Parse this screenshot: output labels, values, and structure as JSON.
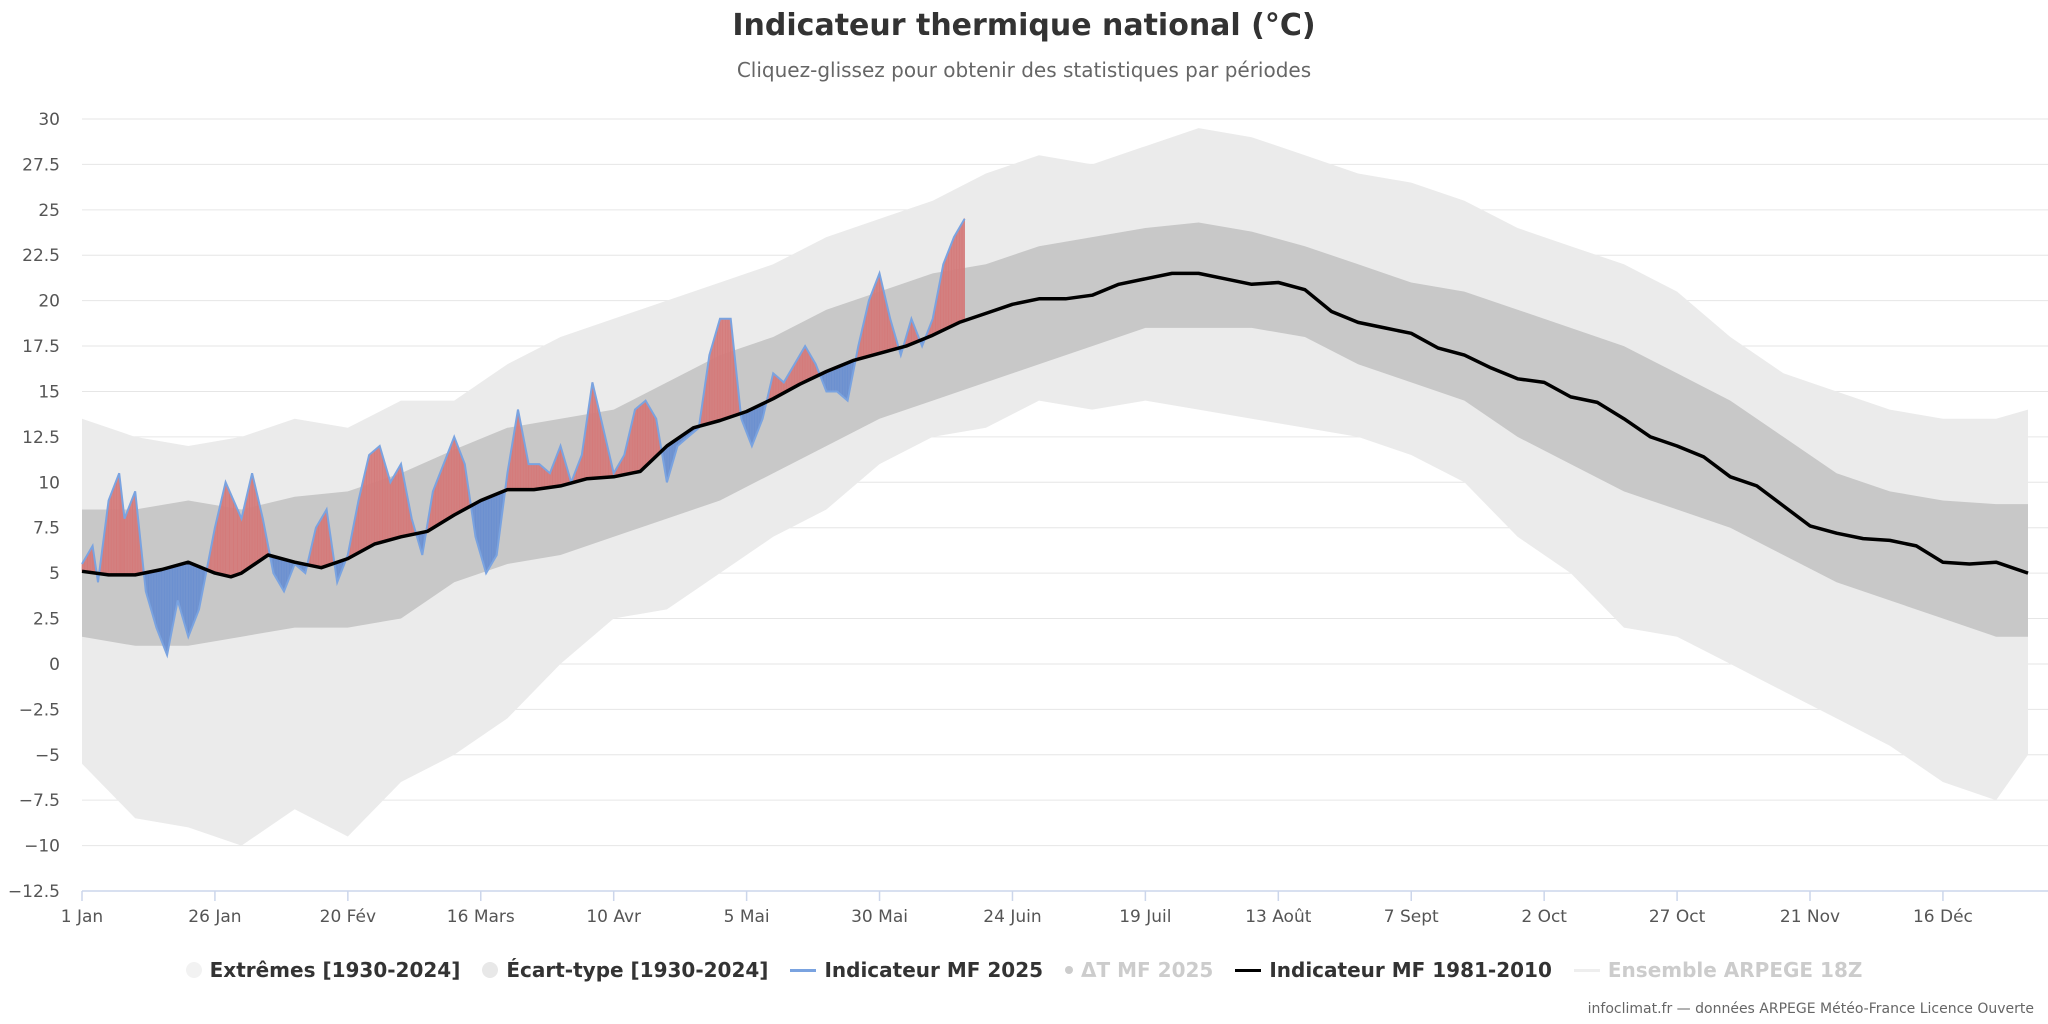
{
  "title": "Indicateur thermique national (°C)",
  "subtitle": "Cliquez-glissez pour obtenir des statistiques par périodes",
  "credit": "infoclimat.fr — données ARPEGE Météo-France Licence Ouverte",
  "colors": {
    "extremes": "#ebebeb",
    "ecart": "#c8c8c8",
    "warm": "#d47a7a",
    "cold": "#6a8fd0",
    "mf2025": "#7aa3e0",
    "normal": "#000000",
    "grid": "#e6e6e6"
  },
  "legend": [
    {
      "label": "Extrêmes [1930-2024]",
      "symbol": "dot",
      "color": "#f2f2f2",
      "hidden": false
    },
    {
      "label": "Écart-type [1930-2024]",
      "symbol": "dot",
      "color": "#e8e8e8",
      "hidden": false
    },
    {
      "label": "Indicateur MF 2025",
      "symbol": "line",
      "color": "#7aa3e0",
      "hidden": false
    },
    {
      "label": "ΔT MF 2025",
      "symbol": "smalldot",
      "color": "#cccccc",
      "hidden": true
    },
    {
      "label": "Indicateur MF 1981-2010",
      "symbol": "line",
      "color": "#000000",
      "hidden": false
    },
    {
      "label": "Ensemble ARPEGE 18Z",
      "symbol": "line",
      "color": "#eeeeee",
      "hidden": true
    }
  ],
  "chart_data": {
    "type": "area",
    "ylim": [
      -12.5,
      30
    ],
    "xlim_days": [
      0,
      366
    ],
    "grid": true,
    "legend_position": "bottom",
    "y_ticks": [
      "30",
      "27.5",
      "25",
      "22.5",
      "20",
      "17.5",
      "15",
      "12.5",
      "10",
      "7.5",
      "5",
      "2.5",
      "0",
      "−2.5",
      "−5",
      "−7.5",
      "−10",
      "−12.5"
    ],
    "x_ticks": [
      {
        "label": "1 Jan",
        "day": 0
      },
      {
        "label": "26 Jan",
        "day": 25
      },
      {
        "label": "20 Fév",
        "day": 50
      },
      {
        "label": "16 Mars",
        "day": 75
      },
      {
        "label": "10 Avr",
        "day": 100
      },
      {
        "label": "5 Mai",
        "day": 125
      },
      {
        "label": "30 Mai",
        "day": 150
      },
      {
        "label": "24 Juin",
        "day": 175
      },
      {
        "label": "19 Juil",
        "day": 200
      },
      {
        "label": "13 Août",
        "day": 225
      },
      {
        "label": "7 Sept",
        "day": 250
      },
      {
        "label": "2 Oct",
        "day": 275
      },
      {
        "label": "27 Oct",
        "day": 300
      },
      {
        "label": "21 Nov",
        "day": 325
      },
      {
        "label": "16 Déc",
        "day": 350
      }
    ],
    "series": [
      {
        "name": "Indicateur MF 1981-2010",
        "x": [
          0,
          5,
          10,
          15,
          20,
          25,
          28,
          30,
          35,
          40,
          45,
          50,
          55,
          60,
          65,
          70,
          75,
          80,
          85,
          90,
          95,
          100,
          105,
          110,
          115,
          120,
          125,
          130,
          135,
          140,
          145,
          150,
          155,
          160,
          165,
          170,
          175,
          180,
          185,
          190,
          195,
          200,
          205,
          210,
          215,
          220,
          225,
          230,
          235,
          240,
          245,
          250,
          255,
          260,
          265,
          270,
          275,
          280,
          285,
          290,
          295,
          300,
          305,
          310,
          315,
          320,
          325,
          330,
          335,
          340,
          345,
          350,
          355,
          360,
          366
        ],
        "values": [
          5.1,
          4.9,
          4.9,
          5.2,
          5.6,
          5.0,
          4.8,
          5.0,
          6.0,
          5.6,
          5.3,
          5.8,
          6.6,
          7.0,
          7.3,
          8.2,
          9.0,
          9.6,
          9.6,
          9.8,
          10.2,
          10.3,
          10.6,
          12.0,
          13.0,
          13.4,
          13.9,
          14.6,
          15.4,
          16.1,
          16.7,
          17.1,
          17.5,
          18.1,
          18.8,
          19.3,
          19.8,
          20.1,
          20.1,
          20.3,
          20.9,
          21.2,
          21.5,
          21.5,
          21.2,
          20.9,
          21.0,
          20.6,
          19.4,
          18.8,
          18.5,
          18.2,
          17.4,
          17.0,
          16.3,
          15.7,
          15.5,
          14.7,
          14.4,
          13.5,
          12.5,
          12.0,
          11.4,
          10.3,
          9.8,
          8.7,
          7.6,
          7.2,
          6.9,
          6.8,
          6.5,
          5.6,
          5.5,
          5.6,
          5.0
        ]
      },
      {
        "name": "Indicateur MF 2025",
        "x": [
          0,
          2,
          3,
          5,
          7,
          8,
          10,
          12,
          14,
          16,
          18,
          20,
          22,
          25,
          27,
          30,
          32,
          34,
          36,
          38,
          40,
          42,
          44,
          46,
          48,
          50,
          52,
          54,
          56,
          58,
          60,
          62,
          64,
          66,
          68,
          70,
          72,
          74,
          76,
          78,
          80,
          82,
          84,
          86,
          88,
          90,
          92,
          94,
          96,
          98,
          100,
          102,
          104,
          106,
          108,
          110,
          112,
          114,
          116,
          118,
          120,
          122,
          124,
          126,
          128,
          130,
          132,
          134,
          136,
          138,
          140,
          142,
          144,
          146,
          148,
          150,
          152,
          154,
          156,
          158,
          160,
          162,
          164,
          166
        ],
        "values": [
          5.5,
          6.5,
          4.5,
          9,
          10.5,
          8,
          9.5,
          4,
          2,
          0.5,
          3.5,
          1.5,
          3,
          7.5,
          10,
          8,
          10.5,
          8,
          5,
          4,
          5.5,
          5,
          7.5,
          8.5,
          4.5,
          6,
          9,
          11.5,
          12,
          10,
          11,
          8,
          6,
          9.5,
          11,
          12.5,
          11,
          7,
          5,
          6,
          10.5,
          14,
          11,
          11,
          10.5,
          12,
          10,
          11.5,
          15.5,
          13,
          10.5,
          11.5,
          14,
          14.5,
          13.5,
          10,
          12,
          12.5,
          13,
          17,
          19,
          19,
          13.5,
          12,
          13.5,
          16,
          15.5,
          16.5,
          17.5,
          16.5,
          15,
          15,
          14.5,
          17.5,
          20,
          21.5,
          19,
          17,
          19,
          17.5,
          19,
          22,
          23.5,
          24.5
        ]
      },
      {
        "name": "Écart-type [1930-2024] max",
        "x": [
          0,
          10,
          20,
          30,
          40,
          50,
          60,
          70,
          80,
          90,
          100,
          110,
          120,
          130,
          140,
          150,
          160,
          170,
          180,
          190,
          200,
          210,
          220,
          230,
          240,
          250,
          260,
          270,
          280,
          290,
          300,
          310,
          320,
          330,
          340,
          350,
          360,
          366
        ],
        "values": [
          8.5,
          8.5,
          9.0,
          8.5,
          9.2,
          9.5,
          10.5,
          11.8,
          13.0,
          13.5,
          14.0,
          15.5,
          17.0,
          18.0,
          19.5,
          20.5,
          21.5,
          22.0,
          23.0,
          23.5,
          24.0,
          24.3,
          23.8,
          23.0,
          22.0,
          21.0,
          20.5,
          19.5,
          18.5,
          17.5,
          16.0,
          14.5,
          12.5,
          10.5,
          9.5,
          9.0,
          8.8,
          8.8
        ]
      },
      {
        "name": "Écart-type [1930-2024] min",
        "x": [
          0,
          10,
          20,
          30,
          40,
          50,
          60,
          70,
          80,
          90,
          100,
          110,
          120,
          130,
          140,
          150,
          160,
          170,
          180,
          190,
          200,
          210,
          220,
          230,
          240,
          250,
          260,
          270,
          280,
          290,
          300,
          310,
          320,
          330,
          340,
          350,
          360,
          366
        ],
        "values": [
          1.5,
          1.0,
          1.0,
          1.5,
          2.0,
          2.0,
          2.5,
          4.5,
          5.5,
          6.0,
          7.0,
          8.0,
          9.0,
          10.5,
          12.0,
          13.5,
          14.5,
          15.5,
          16.5,
          17.5,
          18.5,
          18.5,
          18.5,
          18.0,
          16.5,
          15.5,
          14.5,
          12.5,
          11.0,
          9.5,
          8.5,
          7.5,
          6.0,
          4.5,
          3.5,
          2.5,
          1.5,
          1.5
        ]
      },
      {
        "name": "Extrêmes [1930-2024] max",
        "x": [
          0,
          10,
          20,
          30,
          40,
          50,
          60,
          70,
          80,
          90,
          100,
          110,
          120,
          130,
          140,
          150,
          160,
          170,
          180,
          190,
          200,
          210,
          220,
          230,
          240,
          250,
          260,
          270,
          280,
          290,
          300,
          310,
          320,
          330,
          340,
          350,
          360,
          366
        ],
        "values": [
          13.5,
          12.5,
          12.0,
          12.5,
          13.5,
          13.0,
          14.5,
          14.5,
          16.5,
          18.0,
          19.0,
          20.0,
          21.0,
          22.0,
          23.5,
          24.5,
          25.5,
          27.0,
          28.0,
          27.5,
          28.5,
          29.5,
          29.0,
          28.0,
          27.0,
          26.5,
          25.5,
          24.0,
          23.0,
          22.0,
          20.5,
          18.0,
          16.0,
          15.0,
          14.0,
          13.5,
          13.5,
          14.0
        ]
      },
      {
        "name": "Extrêmes [1930-2024] min",
        "x": [
          0,
          10,
          20,
          30,
          40,
          50,
          60,
          70,
          80,
          90,
          100,
          110,
          120,
          130,
          140,
          150,
          160,
          170,
          180,
          190,
          200,
          210,
          220,
          230,
          240,
          250,
          260,
          270,
          280,
          290,
          300,
          310,
          320,
          330,
          340,
          350,
          360,
          366
        ],
        "values": [
          -5.5,
          -8.5,
          -9.0,
          -10.0,
          -8.0,
          -9.5,
          -6.5,
          -5.0,
          -3.0,
          0.0,
          2.5,
          3.0,
          5.0,
          7.0,
          8.5,
          11.0,
          12.5,
          13.0,
          14.5,
          14.0,
          14.5,
          14.0,
          13.5,
          13.0,
          12.5,
          11.5,
          10.0,
          7.0,
          5.0,
          2.0,
          1.5,
          0.0,
          -1.5,
          -3.0,
          -4.5,
          -6.5,
          -7.5,
          -5.0
        ]
      }
    ]
  }
}
